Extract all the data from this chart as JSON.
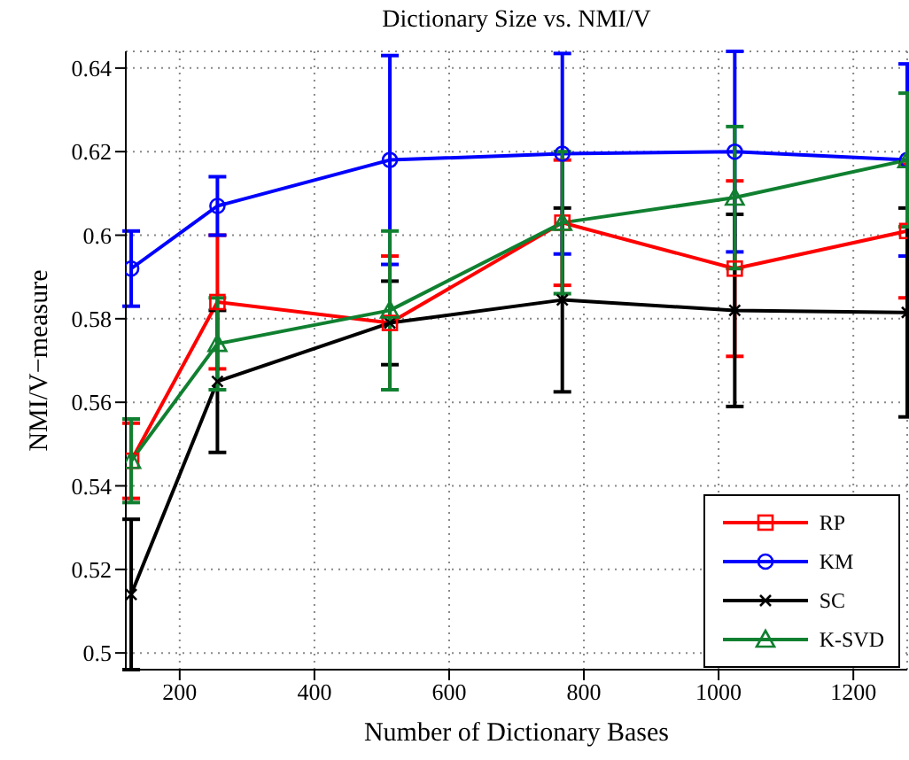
{
  "chart_data": {
    "type": "line",
    "title": "Dictionary Size vs. NMI/V",
    "xlabel": "Number of Dictionary Bases",
    "ylabel": "NMI/V−measure",
    "x": [
      128,
      256,
      512,
      768,
      1024,
      1280
    ],
    "series": [
      {
        "name": "RP",
        "color": "#ff0000",
        "marker": "square",
        "values": [
          0.546,
          0.584,
          0.579,
          0.603,
          0.592,
          0.601
        ],
        "errors": [
          0.009,
          0.016,
          0.016,
          0.015,
          0.021,
          0.016
        ]
      },
      {
        "name": "KM",
        "color": "#0000ff",
        "marker": "circle",
        "values": [
          0.592,
          0.607,
          0.618,
          0.6195,
          0.62,
          0.618
        ],
        "errors": [
          0.009,
          0.007,
          0.025,
          0.024,
          0.024,
          0.023
        ]
      },
      {
        "name": "SC",
        "color": "#000000",
        "marker": "cross",
        "values": [
          0.514,
          0.565,
          0.579,
          0.5845,
          0.582,
          0.5815
        ],
        "errors": [
          0.018,
          0.017,
          0.01,
          0.022,
          0.023,
          0.025
        ]
      },
      {
        "name": "K-SVD",
        "color": "#108030",
        "marker": "triangle",
        "values": [
          0.546,
          0.574,
          0.582,
          0.603,
          0.609,
          0.618
        ],
        "errors": [
          0.01,
          0.011,
          0.019,
          0.017,
          0.017,
          0.016
        ]
      }
    ],
    "xlim": [
      120,
      1280
    ],
    "xticks": [
      200,
      400,
      600,
      800,
      1000,
      1200
    ],
    "ylim": [
      0.496,
      0.644
    ],
    "yticks": [
      0.5,
      0.52,
      0.54,
      0.56,
      0.58,
      0.6,
      0.62,
      0.64
    ],
    "grid": true,
    "legend": "bottom right",
    "line_style": "solid"
  }
}
